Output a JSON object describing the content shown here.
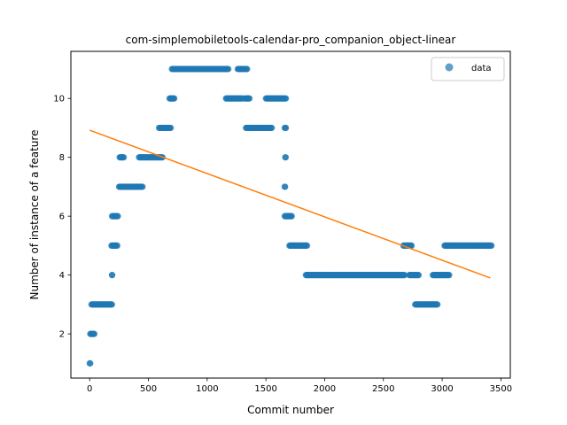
{
  "chart_data": {
    "type": "scatter",
    "title": "com-simplemobiletools-calendar-pro_companion_object-linear",
    "xlabel": "Commit number",
    "ylabel": "Number of instance of a feature",
    "xlim": [
      -160,
      3580
    ],
    "ylim": [
      0.5,
      11.6
    ],
    "xticks": [
      0,
      500,
      1000,
      1500,
      2000,
      2500,
      3000,
      3500
    ],
    "yticks": [
      2,
      4,
      6,
      8,
      10
    ],
    "grid": false,
    "legend": {
      "position": "top-right",
      "entries": [
        "data"
      ]
    },
    "colors": {
      "points": "#1f77b4",
      "fit": "#ff7f0e"
    },
    "series": [
      {
        "name": "data",
        "kind": "scatter",
        "segments": [
          {
            "x_start": 0,
            "x_end": 5,
            "y": 1
          },
          {
            "x_start": 5,
            "x_end": 40,
            "y": 2
          },
          {
            "x_start": 15,
            "x_end": 190,
            "y": 3
          },
          {
            "x_start": 190,
            "x_end": 192,
            "y": 4
          },
          {
            "x_start": 185,
            "x_end": 235,
            "y": 5
          },
          {
            "x_start": 190,
            "x_end": 240,
            "y": 6
          },
          {
            "x_start": 250,
            "x_end": 450,
            "y": 7
          },
          {
            "x_start": 255,
            "x_end": 290,
            "y": 8
          },
          {
            "x_start": 420,
            "x_end": 620,
            "y": 8
          },
          {
            "x_start": 590,
            "x_end": 690,
            "y": 9
          },
          {
            "x_start": 680,
            "x_end": 720,
            "y": 10
          },
          {
            "x_start": 700,
            "x_end": 1180,
            "y": 11
          },
          {
            "x_start": 1160,
            "x_end": 1300,
            "y": 10
          },
          {
            "x_start": 1260,
            "x_end": 1340,
            "y": 11
          },
          {
            "x_start": 1320,
            "x_end": 1360,
            "y": 10
          },
          {
            "x_start": 1330,
            "x_end": 1550,
            "y": 9
          },
          {
            "x_start": 1500,
            "x_end": 1670,
            "y": 10
          },
          {
            "x_start": 1660,
            "x_end": 1670,
            "y": 9
          },
          {
            "x_start": 1665,
            "x_end": 1668,
            "y": 8
          },
          {
            "x_start": 1660,
            "x_end": 1663,
            "y": 7
          },
          {
            "x_start": 1660,
            "x_end": 1720,
            "y": 6
          },
          {
            "x_start": 1700,
            "x_end": 1850,
            "y": 5
          },
          {
            "x_start": 1840,
            "x_end": 2680,
            "y": 4
          },
          {
            "x_start": 2670,
            "x_end": 2740,
            "y": 5
          },
          {
            "x_start": 2720,
            "x_end": 2800,
            "y": 4
          },
          {
            "x_start": 2770,
            "x_end": 2960,
            "y": 3
          },
          {
            "x_start": 2920,
            "x_end": 3060,
            "y": 4
          },
          {
            "x_start": 3020,
            "x_end": 3420,
            "y": 5
          }
        ]
      },
      {
        "name": "",
        "kind": "line",
        "x": [
          0,
          3410
        ],
        "y": [
          8.92,
          3.9
        ]
      }
    ]
  }
}
